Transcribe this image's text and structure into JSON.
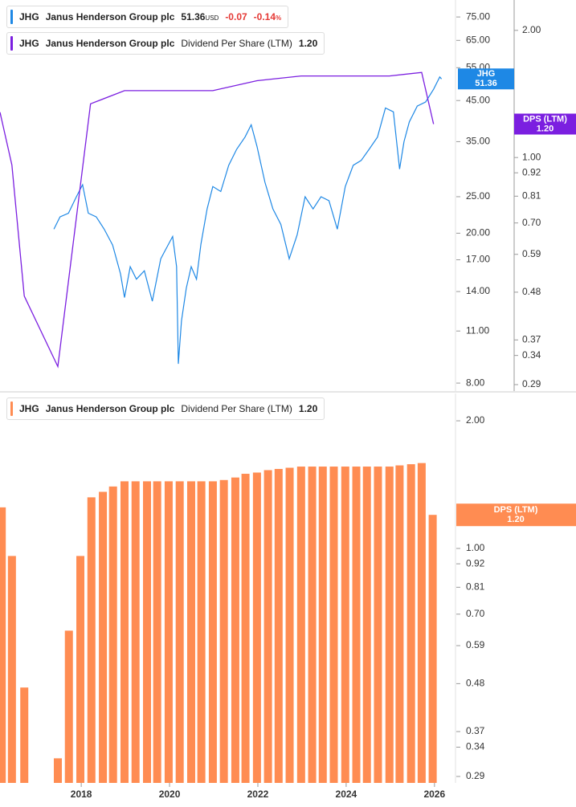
{
  "chart_data": [
    {
      "type": "line",
      "xlim": [
        2016.16,
        2026.44
      ],
      "ylim": [
        7.62,
        83.2
      ],
      "log": true,
      "yticks": [
        {
          "value": 75,
          "label": "75.00"
        },
        {
          "value": 65,
          "label": "65.00"
        },
        {
          "value": 55,
          "label": "55.00"
        },
        {
          "value": 45,
          "label": "45.00"
        },
        {
          "value": 35,
          "label": "35.00"
        },
        {
          "value": 25,
          "label": "25.00"
        },
        {
          "value": 20,
          "label": "20.00"
        },
        {
          "value": 17,
          "label": "17.00"
        },
        {
          "value": 14,
          "label": "14.00"
        },
        {
          "value": 11,
          "label": "11.00"
        },
        {
          "value": 8,
          "label": "8.00"
        }
      ],
      "y2lim": [
        0.28,
        2.36
      ],
      "y2log": true,
      "y2ticks": [
        {
          "value": 2,
          "label": "2.00"
        },
        {
          "value": 1,
          "label": "1.00"
        },
        0.92,
        0.81,
        {
          "value": 0.7,
          "label": "0.70"
        },
        0.59,
        0.48,
        0.37,
        0.34,
        0.29
      ],
      "series": [
        {
          "symbol": "JHG",
          "name": "Janus Henderson Group plc",
          "color": "#1e88e5",
          "last_value": 51.36,
          "currency": "USD",
          "change": -0.07,
          "change_pct": -0.14,
          "pct_unit": "%",
          "x": [
            2017.38,
            2017.52,
            2017.71,
            2017.89,
            2018.03,
            2018.16,
            2018.34,
            2018.52,
            2018.71,
            2018.89,
            2018.98,
            2019.11,
            2019.25,
            2019.43,
            2019.61,
            2019.8,
            2019.89,
            2020.07,
            2020.16,
            2020.2,
            2020.27,
            2020.38,
            2020.49,
            2020.61,
            2020.71,
            2020.85,
            2020.98,
            2021.16,
            2021.34,
            2021.52,
            2021.71,
            2021.85,
            2021.98,
            2022.16,
            2022.34,
            2022.52,
            2022.71,
            2022.89,
            2023.07,
            2023.25,
            2023.43,
            2023.61,
            2023.8,
            2023.98,
            2024.16,
            2024.34,
            2024.52,
            2024.71,
            2024.89,
            2025.07,
            2025.21,
            2025.31,
            2025.43,
            2025.61,
            2025.8,
            2025.98,
            2026.12,
            2026.16
          ],
          "values": [
            20.5,
            22.1,
            22.6,
            25.0,
            26.9,
            22.6,
            22.1,
            20.5,
            18.6,
            15.6,
            13.5,
            16.3,
            15.1,
            15.9,
            13.2,
            17.1,
            17.9,
            19.6,
            16.3,
            9.0,
            11.7,
            14.3,
            16.3,
            15.1,
            18.7,
            23.2,
            26.6,
            25.8,
            30.3,
            33.4,
            36.0,
            38.8,
            34.0,
            27.3,
            23.2,
            21.1,
            17.1,
            19.8,
            25.0,
            23.2,
            25.0,
            24.4,
            20.5,
            26.6,
            30.3,
            31.2,
            33.4,
            36.0,
            43.0,
            42.0,
            29.6,
            35.0,
            39.5,
            43.5,
            44.6,
            48.2,
            52.0,
            51.36
          ]
        },
        {
          "symbol": "JHG",
          "name": "Janus Henderson Group plc",
          "metric": "Dividend Per Share (LTM)",
          "tag": "DPS (LTM)",
          "color": "#7b1fe0",
          "axis": "y2",
          "last_value": 1.2,
          "last_label": "1.20",
          "x": [
            2016.16,
            2016.43,
            2016.71,
            2017.47,
            2018.21,
            2018.98,
            2020.98,
            2021.98,
            2022.98,
            2024.98,
            2025.71,
            2025.98
          ],
          "values": [
            1.28,
            0.96,
            0.47,
            0.32,
            1.34,
            1.44,
            1.44,
            1.52,
            1.56,
            1.56,
            1.59,
            1.2
          ]
        }
      ]
    },
    {
      "type": "bar",
      "xlim": [
        2016.16,
        2026.44
      ],
      "xticks": [
        2018,
        2020,
        2022,
        2024,
        2026
      ],
      "ylim": [
        0.28,
        2.32
      ],
      "log": true,
      "yticks": [
        {
          "value": 2,
          "label": "2.00"
        },
        {
          "value": 1,
          "label": "1.00"
        },
        0.92,
        0.81,
        {
          "value": 0.7,
          "label": "0.70"
        },
        0.59,
        0.48,
        0.37,
        0.34,
        0.29
      ],
      "series": [
        {
          "symbol": "JHG",
          "name": "Janus Henderson Group plc",
          "metric": "Dividend Per Share (LTM)",
          "tag": "DPS (LTM)",
          "color": "#ff8c52",
          "last_value": 1.2,
          "last_label": "1.20",
          "x": [
            2016.2,
            2016.43,
            2016.71,
            2017.47,
            2017.72,
            2017.98,
            2018.23,
            2018.49,
            2018.72,
            2018.98,
            2019.23,
            2019.49,
            2019.72,
            2019.98,
            2020.23,
            2020.49,
            2020.72,
            2020.98,
            2021.23,
            2021.49,
            2021.72,
            2021.98,
            2022.23,
            2022.47,
            2022.72,
            2022.98,
            2023.23,
            2023.47,
            2023.72,
            2023.98,
            2024.23,
            2024.47,
            2024.72,
            2024.98,
            2025.21,
            2025.47,
            2025.71,
            2025.96
          ],
          "values": [
            1.25,
            0.96,
            0.47,
            0.32,
            0.64,
            0.96,
            1.32,
            1.36,
            1.4,
            1.44,
            1.44,
            1.44,
            1.44,
            1.44,
            1.44,
            1.44,
            1.44,
            1.44,
            1.45,
            1.47,
            1.5,
            1.51,
            1.53,
            1.54,
            1.55,
            1.56,
            1.56,
            1.56,
            1.56,
            1.56,
            1.56,
            1.56,
            1.56,
            1.56,
            1.57,
            1.58,
            1.59,
            1.2
          ]
        }
      ]
    }
  ]
}
